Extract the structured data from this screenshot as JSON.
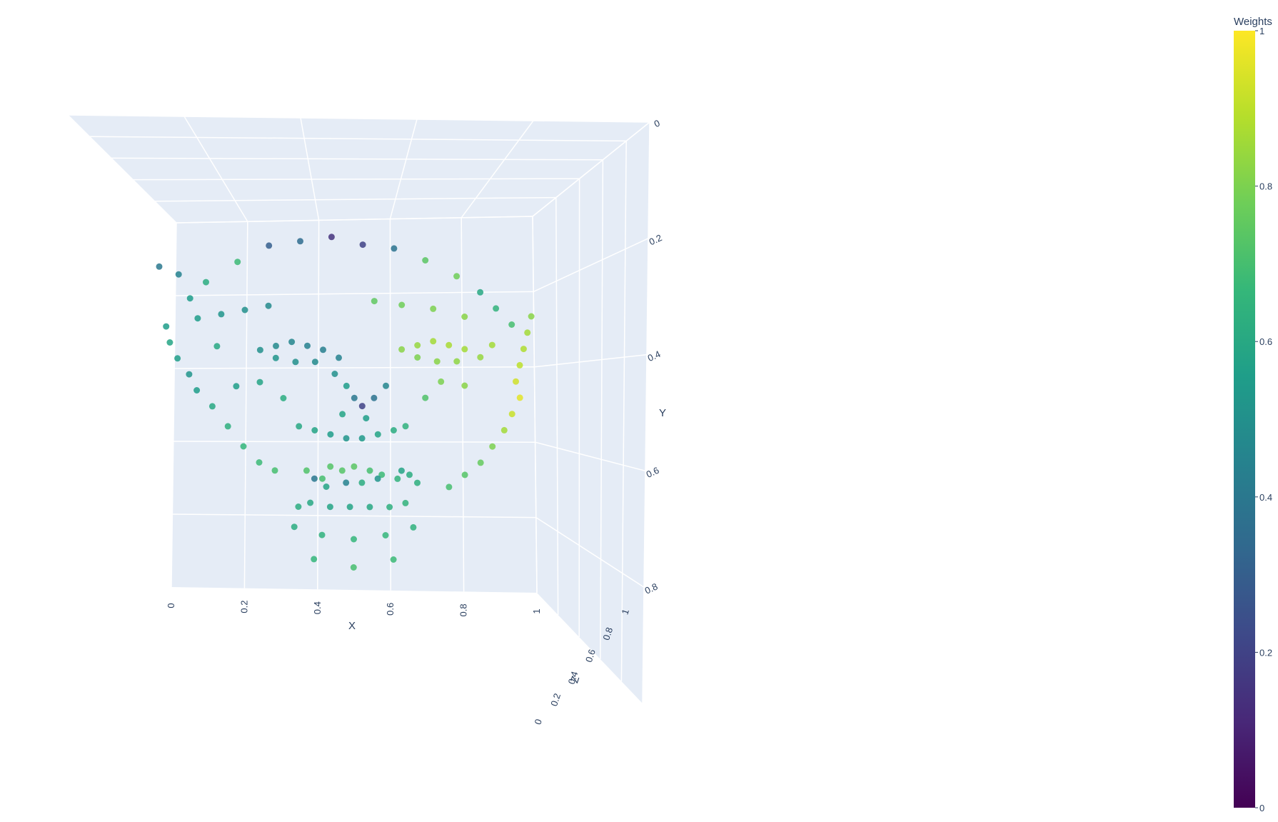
{
  "chart_data": {
    "type": "scatter3d",
    "title": "",
    "axes": {
      "x": {
        "label": "X",
        "range": [
          0,
          1
        ],
        "ticks": [
          "0",
          "0.2",
          "0.4",
          "0.6",
          "0.8",
          "1"
        ]
      },
      "y": {
        "label": "Y",
        "range": [
          0,
          1
        ],
        "reversed": true,
        "ticks": [
          "0",
          "0.2",
          "0.4",
          "0.6",
          "0.8"
        ]
      },
      "z": {
        "label": "Z",
        "range": [
          0,
          1
        ],
        "ticks": [
          "0",
          "0.2",
          "0.4",
          "0.6",
          "0.8",
          "1"
        ]
      }
    },
    "colorbar": {
      "title": "Weights",
      "colorscale": "Viridis",
      "range": [
        0,
        1
      ],
      "ticks": [
        "0",
        "0.2",
        "0.4",
        "0.6",
        "0.8",
        "1"
      ]
    },
    "scene": {
      "background": "#e5ecf6",
      "grid": true
    },
    "points": [
      [
        0.38,
        0.66,
        0.72
      ],
      [
        0.42,
        0.68,
        0.7
      ],
      [
        0.44,
        0.65,
        0.73
      ],
      [
        0.47,
        0.66,
        0.73
      ],
      [
        0.5,
        0.65,
        0.74
      ],
      [
        0.54,
        0.66,
        0.7
      ],
      [
        0.57,
        0.67,
        0.68
      ],
      [
        0.61,
        0.68,
        0.65
      ],
      [
        0.64,
        0.67,
        0.62
      ],
      [
        0.66,
        0.69,
        0.63
      ],
      [
        0.36,
        0.75,
        0.62
      ],
      [
        0.39,
        0.74,
        0.6
      ],
      [
        0.44,
        0.75,
        0.58
      ],
      [
        0.49,
        0.75,
        0.58
      ],
      [
        0.54,
        0.75,
        0.6
      ],
      [
        0.59,
        0.75,
        0.63
      ],
      [
        0.63,
        0.74,
        0.65
      ],
      [
        0.4,
        0.68,
        0.4
      ],
      [
        0.48,
        0.69,
        0.45
      ],
      [
        0.56,
        0.68,
        0.52
      ],
      [
        0.62,
        0.66,
        0.58
      ],
      [
        0.43,
        0.7,
        0.58
      ],
      [
        0.52,
        0.69,
        0.62
      ],
      [
        0.0,
        0.15,
        0.4
      ],
      [
        0.05,
        0.17,
        0.45
      ],
      [
        0.08,
        0.23,
        0.55
      ],
      [
        0.12,
        0.19,
        0.62
      ],
      [
        0.2,
        0.14,
        0.68
      ],
      [
        0.28,
        0.1,
        0.3
      ],
      [
        0.36,
        0.09,
        0.35
      ],
      [
        0.44,
        0.08,
        0.15
      ],
      [
        0.52,
        0.1,
        0.2
      ],
      [
        0.6,
        0.11,
        0.38
      ],
      [
        0.68,
        0.14,
        0.74
      ],
      [
        0.76,
        0.18,
        0.78
      ],
      [
        0.82,
        0.22,
        0.6
      ],
      [
        0.86,
        0.26,
        0.65
      ],
      [
        0.9,
        0.3,
        0.7
      ],
      [
        0.02,
        0.3,
        0.55
      ],
      [
        0.03,
        0.34,
        0.58
      ],
      [
        0.05,
        0.38,
        0.56
      ],
      [
        0.08,
        0.42,
        0.52
      ],
      [
        0.1,
        0.46,
        0.55
      ],
      [
        0.14,
        0.5,
        0.6
      ],
      [
        0.18,
        0.55,
        0.63
      ],
      [
        0.22,
        0.6,
        0.66
      ],
      [
        0.26,
        0.64,
        0.68
      ],
      [
        0.3,
        0.66,
        0.7
      ],
      [
        0.95,
        0.28,
        0.82
      ],
      [
        0.94,
        0.32,
        0.86
      ],
      [
        0.93,
        0.36,
        0.88
      ],
      [
        0.92,
        0.4,
        0.9
      ],
      [
        0.91,
        0.44,
        0.93
      ],
      [
        0.92,
        0.48,
        0.96
      ],
      [
        0.9,
        0.52,
        0.92
      ],
      [
        0.88,
        0.56,
        0.86
      ],
      [
        0.85,
        0.6,
        0.8
      ],
      [
        0.82,
        0.64,
        0.76
      ],
      [
        0.78,
        0.67,
        0.73
      ],
      [
        0.74,
        0.7,
        0.7
      ],
      [
        0.26,
        0.36,
        0.5
      ],
      [
        0.3,
        0.35,
        0.48
      ],
      [
        0.34,
        0.34,
        0.46
      ],
      [
        0.38,
        0.35,
        0.44
      ],
      [
        0.42,
        0.36,
        0.43
      ],
      [
        0.46,
        0.38,
        0.45
      ],
      [
        0.3,
        0.38,
        0.52
      ],
      [
        0.35,
        0.39,
        0.5
      ],
      [
        0.4,
        0.39,
        0.48
      ],
      [
        0.62,
        0.36,
        0.82
      ],
      [
        0.66,
        0.35,
        0.84
      ],
      [
        0.7,
        0.34,
        0.86
      ],
      [
        0.74,
        0.35,
        0.87
      ],
      [
        0.78,
        0.36,
        0.86
      ],
      [
        0.82,
        0.38,
        0.84
      ],
      [
        0.66,
        0.38,
        0.8
      ],
      [
        0.71,
        0.39,
        0.82
      ],
      [
        0.76,
        0.39,
        0.83
      ],
      [
        0.45,
        0.42,
        0.5
      ],
      [
        0.48,
        0.45,
        0.55
      ],
      [
        0.5,
        0.48,
        0.4
      ],
      [
        0.52,
        0.5,
        0.2
      ],
      [
        0.55,
        0.48,
        0.38
      ],
      [
        0.58,
        0.45,
        0.46
      ],
      [
        0.47,
        0.52,
        0.58
      ],
      [
        0.53,
        0.53,
        0.56
      ],
      [
        0.36,
        0.55,
        0.6
      ],
      [
        0.4,
        0.56,
        0.58
      ],
      [
        0.44,
        0.57,
        0.55
      ],
      [
        0.48,
        0.58,
        0.52
      ],
      [
        0.52,
        0.58,
        0.54
      ],
      [
        0.56,
        0.57,
        0.58
      ],
      [
        0.6,
        0.56,
        0.62
      ],
      [
        0.63,
        0.55,
        0.64
      ],
      [
        0.1,
        0.28,
        0.55
      ],
      [
        0.16,
        0.27,
        0.52
      ],
      [
        0.22,
        0.26,
        0.5
      ],
      [
        0.28,
        0.25,
        0.48
      ],
      [
        0.55,
        0.24,
        0.75
      ],
      [
        0.62,
        0.25,
        0.78
      ],
      [
        0.7,
        0.26,
        0.8
      ],
      [
        0.78,
        0.28,
        0.82
      ],
      [
        0.2,
        0.45,
        0.56
      ],
      [
        0.26,
        0.44,
        0.58
      ],
      [
        0.72,
        0.44,
        0.8
      ],
      [
        0.78,
        0.45,
        0.82
      ],
      [
        0.15,
        0.35,
        0.6
      ],
      [
        0.85,
        0.35,
        0.86
      ],
      [
        0.32,
        0.48,
        0.62
      ],
      [
        0.68,
        0.48,
        0.72
      ],
      [
        0.35,
        0.8,
        0.62
      ],
      [
        0.42,
        0.82,
        0.64
      ],
      [
        0.5,
        0.83,
        0.66
      ],
      [
        0.58,
        0.82,
        0.66
      ],
      [
        0.65,
        0.8,
        0.64
      ],
      [
        0.4,
        0.88,
        0.66
      ],
      [
        0.5,
        0.9,
        0.7
      ],
      [
        0.6,
        0.88,
        0.68
      ]
    ]
  }
}
